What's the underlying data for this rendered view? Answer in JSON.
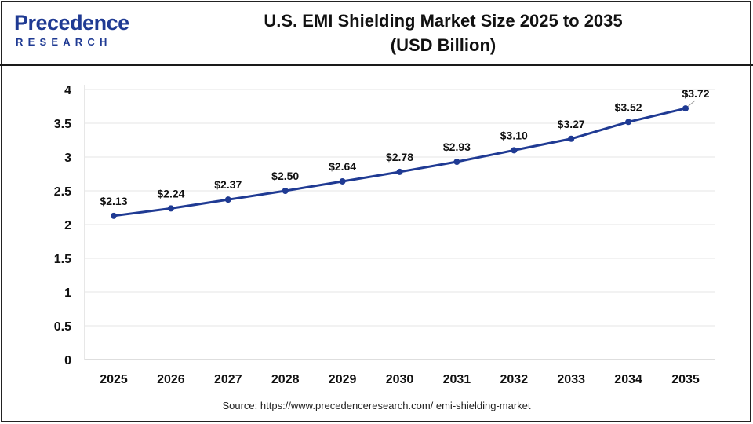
{
  "header": {
    "logo_main": "Precedence",
    "logo_sub": "RESEARCH",
    "title_line1": "U.S. EMI Shielding Market Size 2025 to 2035",
    "title_line2": "(USD Billion)"
  },
  "colors": {
    "line": "#1f3a93",
    "grid": "#e6e6e6",
    "brand": "#1f3a93"
  },
  "chart_data": {
    "type": "line",
    "title": "U.S. EMI Shielding Market Size 2025 to 2035 (USD Billion)",
    "categories": [
      "2025",
      "2026",
      "2027",
      "2028",
      "2029",
      "2030",
      "2031",
      "2032",
      "2033",
      "2034",
      "2035"
    ],
    "series": [
      {
        "values": [
          2.13,
          2.24,
          2.37,
          2.5,
          2.64,
          2.78,
          2.93,
          3.1,
          3.27,
          3.52,
          3.72
        ],
        "labels": [
          "$2.13",
          "$2.24",
          "$2.37",
          "$2.50",
          "$2.64",
          "$2.78",
          "$2.93",
          "$3.10",
          "$3.27",
          "$3.52",
          "$3.72"
        ]
      }
    ],
    "yticks": [
      "0",
      "0.5",
      "1",
      "1.5",
      "2",
      "2.5",
      "3",
      "3.5",
      "4"
    ],
    "ylim": [
      0,
      4
    ],
    "xlabel": "",
    "ylabel": "",
    "grid": "horizontal",
    "legend": "none"
  },
  "footer": {
    "source": "Source: https://www.precedenceresearch.com/ emi-shielding-market"
  }
}
